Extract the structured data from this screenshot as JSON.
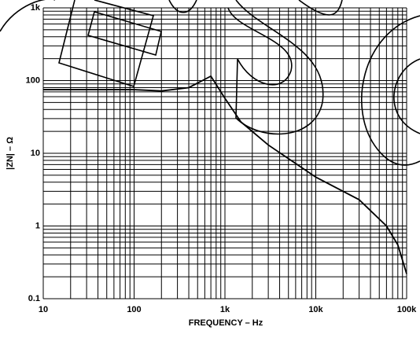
{
  "chart_data": {
    "type": "line",
    "xlabel": "FREQUENCY – Hz",
    "ylabel": "|ZN| – Ω",
    "log_x": true,
    "log_y": true,
    "grid": true,
    "xlim": [
      10,
      100000
    ],
    "xticks": [
      10,
      100,
      {
        "value": 1000,
        "label": "1k"
      },
      {
        "value": 10000,
        "label": "10k"
      },
      {
        "value": 100000,
        "label": "100k"
      }
    ],
    "ylim": [
      0.1,
      1000
    ],
    "yticks": [
      0.1,
      1,
      10,
      100,
      {
        "value": 1000,
        "label": "1k"
      }
    ],
    "series": [
      {
        "color": "#000000",
        "x": [
          10,
          100,
          200,
          400,
          700,
          1000,
          1500,
          3000,
          10000,
          30000,
          60000,
          80000,
          100000
        ],
        "values": [
          75,
          75,
          72,
          80,
          115,
          57,
          27,
          13,
          4.7,
          2.3,
          1.0,
          0.55,
          0.22
        ]
      }
    ]
  }
}
